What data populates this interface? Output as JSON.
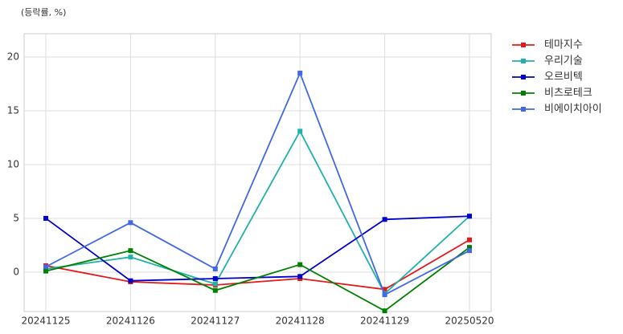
{
  "chart_data": {
    "type": "line",
    "y_label": "(등락률, %)",
    "categories": [
      "20241125",
      "20241126",
      "20241127",
      "20241128",
      "20241129",
      "20250520"
    ],
    "series": [
      {
        "name": "테마지수",
        "color": "#e31a1c",
        "values": [
          0.6,
          -0.9,
          -1.2,
          -0.6,
          -1.6,
          3.0
        ]
      },
      {
        "name": "우리기술",
        "color": "#20b2aa",
        "values": [
          0.3,
          1.4,
          -1.1,
          13.1,
          -2.0,
          5.2
        ]
      },
      {
        "name": "오르비텍",
        "color": "#0000cd",
        "values": [
          5.0,
          -0.8,
          -0.6,
          -0.4,
          4.9,
          5.2
        ]
      },
      {
        "name": "비츠로테크",
        "color": "#008000",
        "values": [
          0.1,
          2.0,
          -1.7,
          0.7,
          -3.6,
          2.3
        ]
      },
      {
        "name": "비에이치아이",
        "color": "#4169e1",
        "values": [
          0.5,
          4.6,
          0.3,
          18.5,
          -2.1,
          2.0
        ]
      }
    ],
    "ylim": [
      -3.66,
      22.16
    ],
    "yticks": [
      0,
      5,
      10,
      15,
      20
    ],
    "grid": true,
    "legend": "outside-right"
  }
}
